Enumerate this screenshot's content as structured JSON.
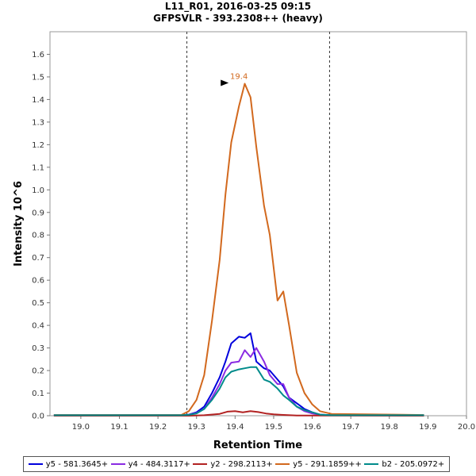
{
  "chart_data": {
    "type": "line",
    "title": "L11_R01, 2016-03-25 09:15",
    "subtitle": "GFPSVLR - 393.2308++ (heavy)",
    "xlabel": "Retention Time",
    "ylabel": "Intensity 10^6",
    "xlim": [
      18.92,
      20.0
    ],
    "ylim": [
      0,
      1.7
    ],
    "xticks": [
      "19.0",
      "19.1",
      "19.2",
      "19.3",
      "19.4",
      "19.5",
      "19.6",
      "19.7",
      "19.8",
      "19.9",
      "20.0"
    ],
    "yticks": [
      "0.0",
      "0.1",
      "0.2",
      "0.3",
      "0.4",
      "0.5",
      "0.6",
      "0.7",
      "0.8",
      "0.9",
      "1.0",
      "1.1",
      "1.2",
      "1.3",
      "1.4",
      "1.5",
      "1.6"
    ],
    "boundaries": [
      19.275,
      19.645
    ],
    "peak_annotation": {
      "label": "19.4",
      "x": 19.41,
      "y": 1.47,
      "color": "#d2691e"
    },
    "legend_position": "bottom",
    "series": [
      {
        "name": "y5 - 581.3645+",
        "color": "#0000dd",
        "x": [
          18.93,
          19.26,
          19.28,
          19.3,
          19.32,
          19.34,
          19.36,
          19.375,
          19.39,
          19.41,
          19.425,
          19.44,
          19.455,
          19.475,
          19.49,
          19.51,
          19.525,
          19.54,
          19.56,
          19.58,
          19.6,
          19.62,
          19.65,
          19.89
        ],
        "y": [
          0.002,
          0.002,
          0.005,
          0.015,
          0.04,
          0.1,
          0.17,
          0.24,
          0.32,
          0.35,
          0.345,
          0.365,
          0.24,
          0.21,
          0.2,
          0.16,
          0.13,
          0.08,
          0.055,
          0.03,
          0.015,
          0.005,
          0.002,
          0.002
        ]
      },
      {
        "name": "y4 - 484.3117+",
        "color": "#8a2be2",
        "x": [
          18.93,
          19.26,
          19.28,
          19.3,
          19.32,
          19.34,
          19.36,
          19.375,
          19.39,
          19.41,
          19.425,
          19.44,
          19.455,
          19.475,
          19.49,
          19.51,
          19.525,
          19.54,
          19.56,
          19.58,
          19.6,
          19.62,
          19.65,
          19.89
        ],
        "y": [
          0.002,
          0.002,
          0.004,
          0.012,
          0.03,
          0.08,
          0.14,
          0.2,
          0.235,
          0.24,
          0.29,
          0.26,
          0.3,
          0.24,
          0.18,
          0.14,
          0.14,
          0.08,
          0.04,
          0.02,
          0.01,
          0.004,
          0.002,
          0.002
        ]
      },
      {
        "name": "y2 - 298.2113+",
        "color": "#b22222",
        "x": [
          18.93,
          19.28,
          19.32,
          19.36,
          19.38,
          19.4,
          19.42,
          19.44,
          19.46,
          19.48,
          19.5,
          19.52,
          19.56,
          19.89
        ],
        "y": [
          0.0,
          0.0,
          0.002,
          0.008,
          0.018,
          0.02,
          0.015,
          0.02,
          0.016,
          0.01,
          0.006,
          0.004,
          0.001,
          0.0
        ]
      },
      {
        "name": "y5 - 291.1859++",
        "color": "#d2691e",
        "x": [
          18.93,
          19.26,
          19.28,
          19.3,
          19.32,
          19.34,
          19.36,
          19.375,
          19.39,
          19.41,
          19.425,
          19.44,
          19.455,
          19.475,
          19.49,
          19.51,
          19.525,
          19.54,
          19.56,
          19.58,
          19.6,
          19.62,
          19.65,
          19.89
        ],
        "y": [
          0.003,
          0.003,
          0.02,
          0.07,
          0.18,
          0.42,
          0.69,
          0.98,
          1.21,
          1.37,
          1.47,
          1.41,
          1.19,
          0.93,
          0.8,
          0.51,
          0.55,
          0.4,
          0.19,
          0.1,
          0.05,
          0.02,
          0.008,
          0.003
        ]
      },
      {
        "name": "b2 - 205.0972+",
        "color": "#008b8b",
        "x": [
          18.93,
          19.26,
          19.28,
          19.3,
          19.32,
          19.34,
          19.36,
          19.375,
          19.39,
          19.41,
          19.425,
          19.44,
          19.455,
          19.475,
          19.49,
          19.51,
          19.525,
          19.54,
          19.56,
          19.58,
          19.6,
          19.62,
          19.65,
          19.89
        ],
        "y": [
          0.002,
          0.002,
          0.004,
          0.01,
          0.03,
          0.07,
          0.12,
          0.17,
          0.195,
          0.205,
          0.21,
          0.215,
          0.215,
          0.16,
          0.15,
          0.12,
          0.09,
          0.07,
          0.04,
          0.025,
          0.015,
          0.005,
          0.002,
          0.002
        ]
      }
    ]
  }
}
